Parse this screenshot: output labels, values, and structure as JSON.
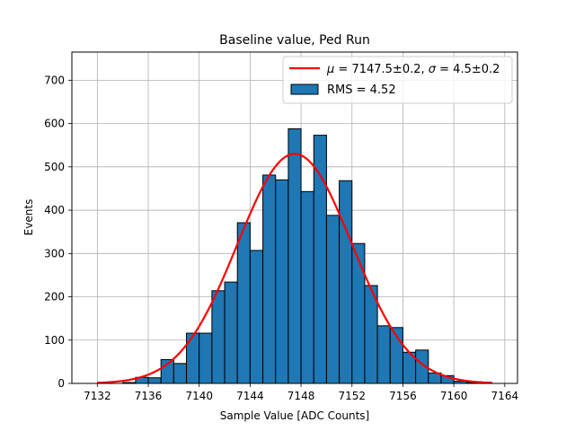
{
  "chart_data": {
    "type": "bar",
    "title": "Baseline value, Ped Run",
    "xlabel": "Sample Value [ADC Counts]",
    "ylabel": "Events",
    "xlim": [
      7130.0,
      7165.0
    ],
    "ylim": [
      0,
      765
    ],
    "xticks": [
      7132,
      7136,
      7140,
      7144,
      7148,
      7152,
      7156,
      7160,
      7164
    ],
    "yticks": [
      0,
      100,
      200,
      300,
      400,
      500,
      600,
      700
    ],
    "grid": true,
    "legend_position": "top-right",
    "histogram": {
      "name": "RMS = 4.52",
      "color": "#1f77b4",
      "edge_color": "#000000",
      "bin_edges": [
        7132.0,
        7133.0,
        7134.0,
        7135.0,
        7136.0,
        7137.0,
        7138.0,
        7139.0,
        7140.0,
        7141.0,
        7142.0,
        7143.0,
        7144.0,
        7145.0,
        7146.0,
        7147.0,
        7148.0,
        7149.0,
        7150.0,
        7151.0,
        7152.0,
        7153.0,
        7154.0,
        7155.0,
        7156.0,
        7157.0,
        7158.0,
        7159.0,
        7160.0,
        7161.0,
        7162.0,
        7163.0
      ],
      "counts": [
        0,
        0,
        2,
        14,
        13,
        55,
        46,
        116,
        116,
        214,
        234,
        371,
        307,
        481,
        470,
        588,
        443,
        573,
        388,
        468,
        323,
        226,
        133,
        129,
        72,
        77,
        24,
        18,
        5,
        2,
        1
      ]
    },
    "fit_curve": {
      "name": "$\\mu = 7147.5\\pm0.2$, $\\sigma = 4.5\\pm0.2$",
      "type": "line",
      "color": "#ff0000",
      "mu": 7147.5,
      "sigma": 4.5,
      "amplitude": 530
    },
    "legend": [
      {
        "label_prefix": "μ",
        "label_text": " = 7147.5±0.2, ",
        "label_sigma": "σ",
        "label_text2": " = 4.5±0.2",
        "kind": "line",
        "color": "#ff0000"
      },
      {
        "label": "RMS = 4.52",
        "kind": "patch",
        "color": "#1f77b4"
      }
    ]
  }
}
